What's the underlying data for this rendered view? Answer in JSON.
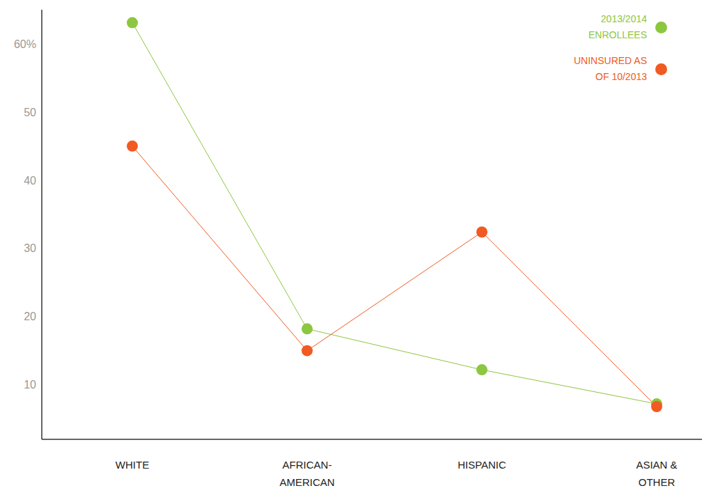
{
  "chart_data": {
    "type": "line",
    "categories": [
      "WHITE",
      "AFRICAN-AMERICAN",
      "HISPANIC",
      "ASIAN & OTHER"
    ],
    "series": [
      {
        "name": "2013/2014 ENROLLEES",
        "color": "#8dc63f",
        "values": [
          63.1,
          18.2,
          12.2,
          7.2
        ]
      },
      {
        "name": "UNINSURED AS OF 10/2013",
        "color": "#f15a22",
        "values": [
          45,
          15,
          32.4,
          6.8
        ]
      }
    ],
    "ylim": [
      2,
      65
    ],
    "yticks": [
      10,
      20,
      30,
      40,
      50,
      {
        "value": 60,
        "label": "60%"
      }
    ],
    "legend": "top-right",
    "grid": false,
    "marker": "circle"
  }
}
